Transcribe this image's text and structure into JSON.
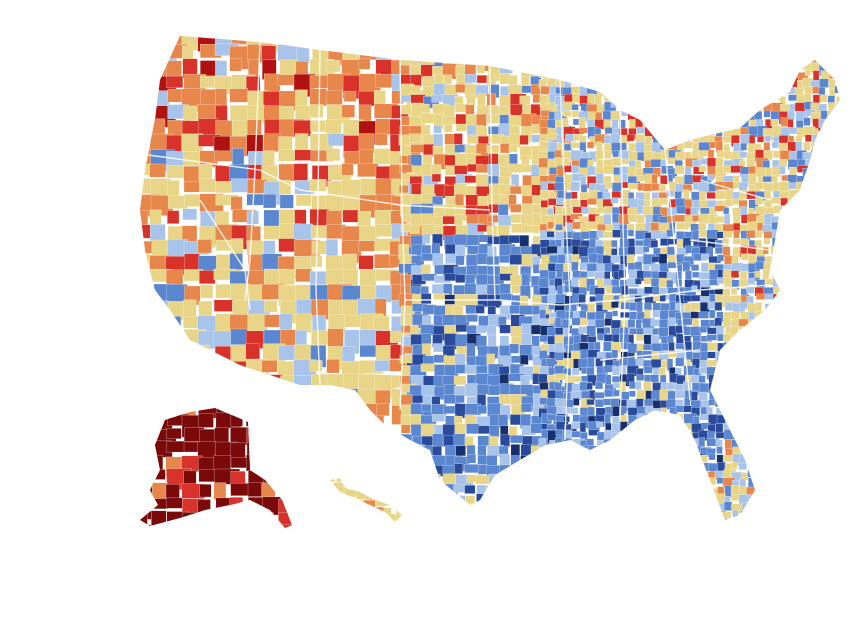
{
  "map": {
    "kind": "choropleth-us-counties",
    "legend": null,
    "palette": {
      "dark_red": "#7a0a0a",
      "red": "#d8322b",
      "orange": "#e8874c",
      "yellow": "#e9d587",
      "light_blue": "#a9c4ea",
      "blue": "#5b86d0",
      "dark_blue": "#2a4b9b",
      "navy": "#16306e"
    },
    "regions": [
      {
        "name": "alaska",
        "dominant": "dark_red"
      },
      {
        "name": "hawaii",
        "dominant": "yellow"
      },
      {
        "name": "pacific-northwest",
        "dominant": "orange"
      },
      {
        "name": "mountain-west",
        "dominant": "orange"
      },
      {
        "name": "great-plains",
        "dominant": "yellow"
      },
      {
        "name": "southeast",
        "dominant": "blue"
      },
      {
        "name": "northeast",
        "dominant": "yellow"
      }
    ]
  }
}
